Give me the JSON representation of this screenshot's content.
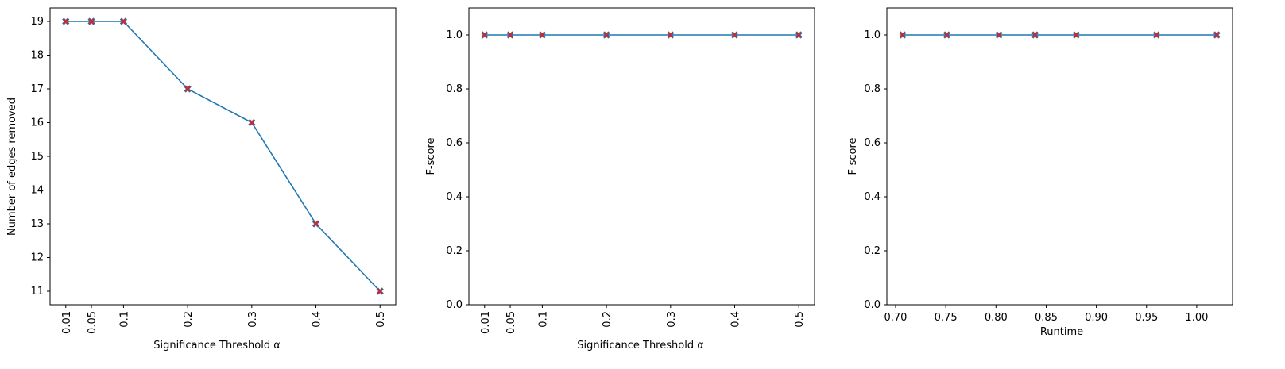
{
  "chart_data": [
    {
      "type": "line",
      "xlabel": "Significance Threshold α",
      "ylabel": "Number of edges removed",
      "x": [
        0.01,
        0.05,
        0.1,
        0.2,
        0.3,
        0.4,
        0.5
      ],
      "xticks": [
        "0.01",
        "0.05",
        "0.1",
        "0.2",
        "0.3",
        "0.4",
        "0.5"
      ],
      "xtick_rotation": "vertical",
      "xlim": [
        -0.0145,
        0.5245
      ],
      "ylim": [
        10.6,
        19.4
      ],
      "yticks": [
        "11",
        "12",
        "13",
        "14",
        "15",
        "16",
        "17",
        "18",
        "19"
      ],
      "series": [
        {
          "values": [
            19,
            19,
            19,
            17,
            16,
            13,
            11
          ],
          "line_color": "#1f77b4",
          "marker_color": "#d62728",
          "marker": "x"
        }
      ],
      "grid": false
    },
    {
      "type": "line",
      "xlabel": "Significance Threshold α",
      "ylabel": "F-score",
      "x": [
        0.01,
        0.05,
        0.1,
        0.2,
        0.3,
        0.4,
        0.5
      ],
      "xticks": [
        "0.01",
        "0.05",
        "0.1",
        "0.2",
        "0.3",
        "0.4",
        "0.5"
      ],
      "xtick_rotation": "vertical",
      "xlim": [
        -0.0145,
        0.5245
      ],
      "ylim": [
        0.0,
        1.1
      ],
      "yticks": [
        "0.0",
        "0.2",
        "0.4",
        "0.6",
        "0.8",
        "1.0"
      ],
      "series": [
        {
          "values": [
            1.0,
            1.0,
            1.0,
            1.0,
            1.0,
            1.0,
            1.0
          ],
          "line_color": "#1f77b4",
          "marker_color": "#d62728",
          "marker": "x"
        }
      ],
      "grid": false
    },
    {
      "type": "line",
      "xlabel": "Runtime",
      "ylabel": "F-score",
      "x": [
        0.707,
        0.751,
        0.803,
        0.839,
        0.88,
        0.96,
        1.02
      ],
      "xticks": [
        "0.70",
        "0.75",
        "0.80",
        "0.85",
        "0.90",
        "0.95",
        "1.00"
      ],
      "xtick_values": [
        0.7,
        0.75,
        0.8,
        0.85,
        0.9,
        0.95,
        1.0
      ],
      "xtick_rotation": "horizontal",
      "xlim": [
        0.6913,
        1.0357
      ],
      "ylim": [
        0.0,
        1.1
      ],
      "yticks": [
        "0.0",
        "0.2",
        "0.4",
        "0.6",
        "0.8",
        "1.0"
      ],
      "series": [
        {
          "values": [
            1.0,
            1.0,
            1.0,
            1.0,
            1.0,
            1.0,
            1.0
          ],
          "line_color": "#1f77b4",
          "marker_color": "#d62728",
          "marker": "x"
        }
      ],
      "grid": false
    }
  ]
}
